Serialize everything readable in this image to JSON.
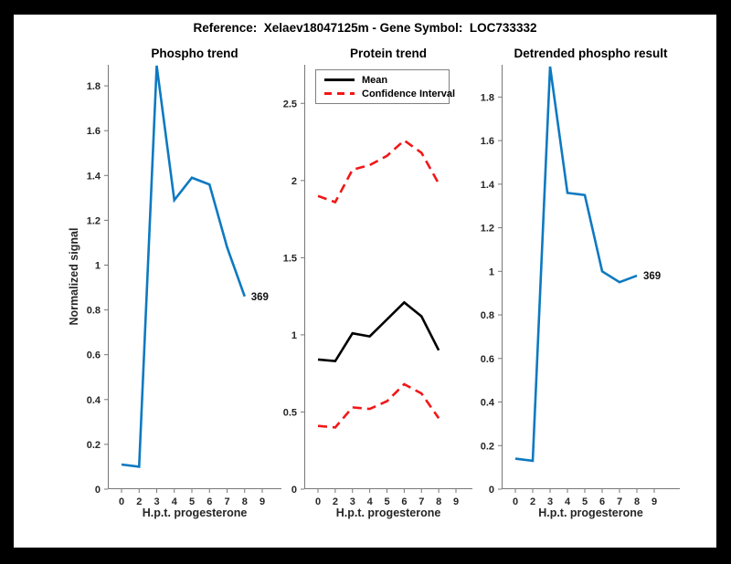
{
  "figure": {
    "title": "Reference:  Xelaev18047125m - Gene Symbol:  LOC733332",
    "frame_color": "#000000",
    "canvas_color": "#ffffff",
    "accent_blue": "#0d79c1",
    "accent_red": "#f11717",
    "axis_color": "#777777",
    "tick_text_color": "#262626"
  },
  "chart_data": [
    {
      "type": "line",
      "title": "Phospho trend",
      "xlabel": "H.p.t. progesterone",
      "ylabel": "Normalized signal",
      "x_tick_labels": [
        "0",
        "2",
        "3",
        "4",
        "5",
        "6",
        "7",
        "8",
        "9"
      ],
      "y_ticks": [
        0,
        0.2,
        0.4,
        0.6,
        0.8,
        1,
        1.2,
        1.4,
        1.6,
        1.8
      ],
      "y_tick_labels": [
        "0",
        "0.2",
        "0.4",
        "0.6",
        "0.8",
        "1",
        "1.2",
        "1.4",
        "1.6",
        "1.8"
      ],
      "ylim": [
        0,
        1.894
      ],
      "grid": false,
      "series": [
        {
          "name": "phospho-signal",
          "color": "#0d79c1",
          "style": "solid",
          "x": [
            0,
            2,
            3,
            4,
            5,
            6,
            7,
            8
          ],
          "values": [
            0.11,
            0.1,
            1.89,
            1.29,
            1.39,
            1.36,
            1.08,
            0.86
          ]
        }
      ],
      "end_label": "369"
    },
    {
      "type": "line",
      "title": "Protein trend",
      "xlabel": "H.p.t. progesterone",
      "ylabel": "",
      "x_tick_labels": [
        "0",
        "2",
        "3",
        "4",
        "5",
        "6",
        "7",
        "8",
        "9"
      ],
      "y_ticks": [
        0,
        0.5,
        1,
        1.5,
        2,
        2.5
      ],
      "y_tick_labels": [
        "0",
        "0.5",
        "1",
        "1.5",
        "2",
        "2.5"
      ],
      "ylim": [
        0,
        2.75
      ],
      "grid": false,
      "series": [
        {
          "name": "mean",
          "color": "#000000",
          "style": "solid",
          "x": [
            0,
            2,
            3,
            4,
            5,
            6,
            7,
            8
          ],
          "values": [
            0.84,
            0.83,
            1.01,
            0.99,
            1.1,
            1.21,
            1.12,
            0.9
          ]
        },
        {
          "name": "confidence-interval-upper",
          "color": "#f11717",
          "style": "dashed",
          "x": [
            0,
            2,
            3,
            4,
            5,
            6,
            7,
            8
          ],
          "values": [
            1.9,
            1.86,
            2.07,
            2.1,
            2.16,
            2.26,
            2.18,
            1.98
          ]
        },
        {
          "name": "confidence-interval-lower",
          "color": "#f11717",
          "style": "dashed",
          "x": [
            0,
            2,
            3,
            4,
            5,
            6,
            7,
            8
          ],
          "values": [
            0.41,
            0.4,
            0.53,
            0.52,
            0.57,
            0.68,
            0.62,
            0.46
          ]
        }
      ],
      "legend": {
        "position": "top-left",
        "entries": [
          {
            "label": "Mean",
            "color": "#000000",
            "style": "solid"
          },
          {
            "label": "Confidence Interval",
            "color": "#f11717",
            "style": "dashed"
          }
        ]
      }
    },
    {
      "type": "line",
      "title": "Detrended phospho result",
      "xlabel": "H.p.t. progesterone",
      "ylabel": "",
      "x_tick_labels": [
        "0",
        "2",
        "3",
        "4",
        "5",
        "6",
        "7",
        "8",
        "9"
      ],
      "y_ticks": [
        0,
        0.2,
        0.4,
        0.6,
        0.8,
        1,
        1.2,
        1.4,
        1.6,
        1.8
      ],
      "y_tick_labels": [
        "0",
        "0.2",
        "0.4",
        "0.6",
        "0.8",
        "1",
        "1.2",
        "1.4",
        "1.6",
        "1.8"
      ],
      "ylim": [
        0,
        1.948
      ],
      "grid": false,
      "series": [
        {
          "name": "detrended-phospho-signal",
          "color": "#0d79c1",
          "style": "solid",
          "x": [
            0,
            2,
            3,
            4,
            5,
            6,
            7,
            8
          ],
          "values": [
            0.14,
            0.13,
            1.94,
            1.36,
            1.35,
            1.0,
            0.95,
            0.98
          ]
        }
      ],
      "end_label": "369"
    }
  ]
}
